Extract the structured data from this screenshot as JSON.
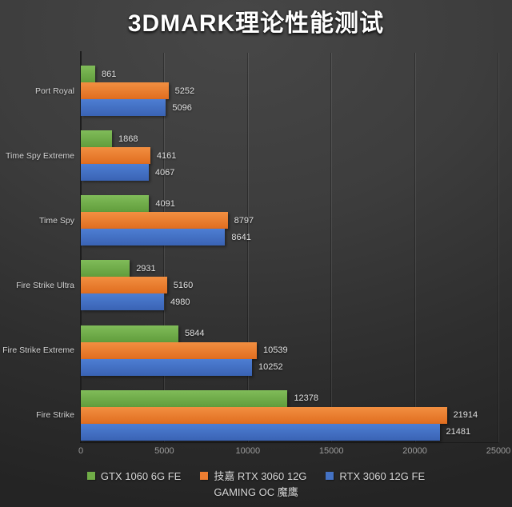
{
  "chart_data": {
    "type": "bar",
    "orientation": "horizontal",
    "title": "3DMARK理论性能测试",
    "categories": [
      "Port Royal",
      "Time Spy Extreme",
      "Time Spy",
      "Fire Strike Ultra",
      "Fire Strike Extreme",
      "Fire Strike"
    ],
    "series": [
      {
        "name": "GTX 1060 6G FE",
        "color": "#70AD47",
        "values": [
          861,
          1868,
          4091,
          2931,
          5844,
          12378
        ]
      },
      {
        "name": "技嘉 RTX 3060 12G GAMING OC 魔鹰",
        "color": "#ED7D31",
        "values": [
          5252,
          4161,
          8797,
          5160,
          10539,
          21914
        ]
      },
      {
        "name": "RTX 3060 12G FE",
        "color": "#4472C4",
        "values": [
          5096,
          4067,
          8641,
          4980,
          10252,
          21481
        ]
      }
    ],
    "xlim": [
      0,
      25000
    ],
    "x_ticks": [
      "0",
      "5000",
      "10000",
      "15000",
      "20000",
      "25000"
    ],
    "grid": "vertical",
    "legend_position": "bottom",
    "legend": [
      {
        "lines": [
          "GTX 1060 6G FE"
        ],
        "color": "#70AD47"
      },
      {
        "lines": [
          "技嘉 RTX 3060 12G",
          "GAMING OC 魔鹰"
        ],
        "color": "#ED7D31"
      },
      {
        "lines": [
          "RTX 3060 12G FE"
        ],
        "color": "#4472C4"
      }
    ],
    "colors": {
      "background_top": "#474747",
      "background_bottom": "#242424",
      "title_text": "#ffffff",
      "category_text": "#d4d4d4",
      "value_text": "#e2e2e2",
      "tick_text": "#9c9c9c"
    }
  }
}
